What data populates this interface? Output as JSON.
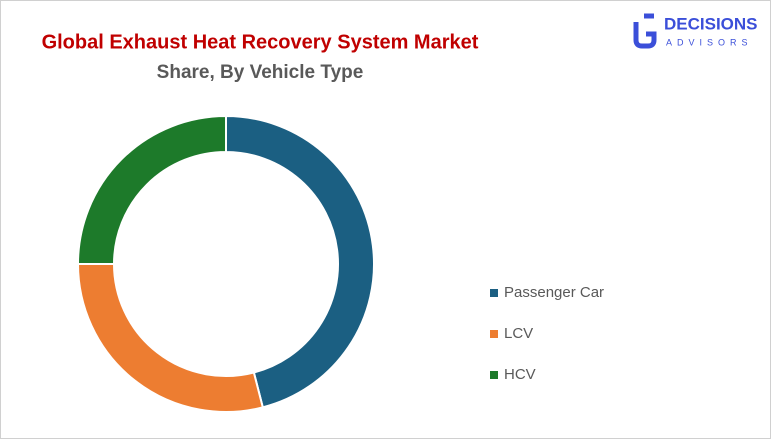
{
  "chart_data": {
    "type": "donut",
    "title": "Global Exhaust Heat Recovery System Market",
    "subtitle": "Share, By Vehicle Type",
    "categories": [
      "Passenger Car",
      "LCV",
      "HCV"
    ],
    "values": [
      46,
      29,
      25
    ],
    "colors": [
      "#1b5f82",
      "#ed7d31",
      "#1d7a2a"
    ],
    "legend": "right"
  },
  "logo": {
    "name": "DECISIONS",
    "tagline": "ADVISORS"
  }
}
